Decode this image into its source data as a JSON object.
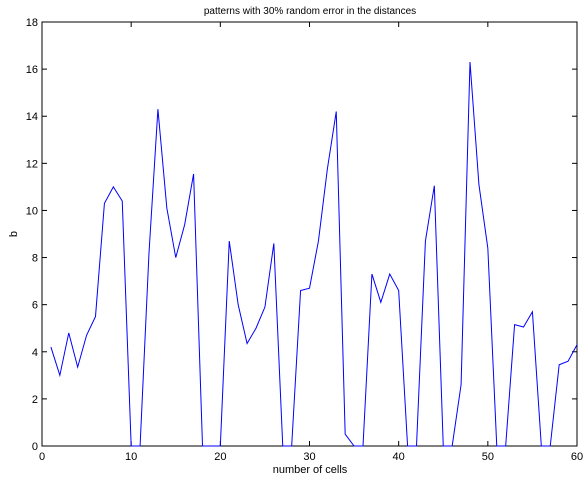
{
  "chart_data": {
    "type": "line",
    "title": "patterns with 30% random error in the distances",
    "xlabel": "number of cells",
    "ylabel": "b",
    "xlim": [
      0,
      60
    ],
    "ylim": [
      0,
      18
    ],
    "x_ticks": [
      0,
      10,
      20,
      30,
      40,
      50,
      60
    ],
    "y_ticks": [
      0,
      2,
      4,
      6,
      8,
      10,
      12,
      14,
      16,
      18
    ],
    "grid": false,
    "line_color": "#0000ff",
    "series": [
      {
        "x": [
          1,
          2,
          3,
          4,
          5,
          6,
          7,
          8,
          9,
          10,
          11,
          12,
          13,
          14,
          15,
          16,
          17,
          18,
          19,
          20,
          21,
          22,
          23,
          24,
          25,
          26,
          27,
          28,
          29,
          30,
          31,
          32,
          33,
          34,
          35,
          36,
          37,
          38,
          39,
          40,
          41,
          42,
          43,
          44,
          45,
          46,
          47,
          48,
          49,
          50,
          51,
          52,
          53,
          54,
          55,
          56,
          57,
          58,
          59,
          60
        ],
        "values": [
          4.2,
          3.0,
          4.8,
          3.35,
          4.7,
          5.5,
          10.3,
          11.0,
          10.4,
          0,
          0,
          8.2,
          14.3,
          10.1,
          8.0,
          9.4,
          11.55,
          0,
          0,
          0,
          8.7,
          6.0,
          4.35,
          5.0,
          5.9,
          8.6,
          0,
          0,
          6.6,
          6.7,
          8.7,
          11.75,
          14.2,
          0.5,
          0,
          0,
          7.3,
          6.1,
          7.3,
          6.6,
          0,
          0,
          8.7,
          11.05,
          0,
          0,
          2.6,
          16.3,
          11.1,
          8.4,
          0,
          0,
          5.15,
          5.05,
          5.7,
          0,
          0,
          3.45,
          3.6,
          4.3
        ]
      }
    ]
  }
}
